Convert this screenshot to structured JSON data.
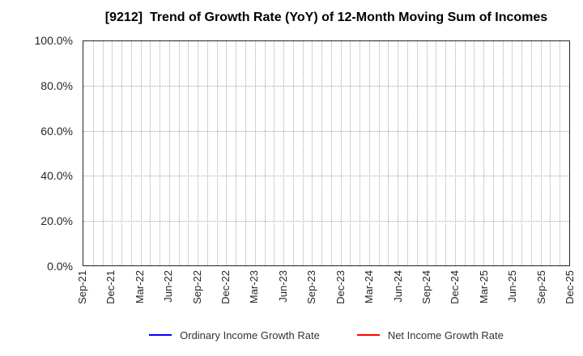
{
  "title": "[9212]  Trend of Growth Rate (YoY) of 12-Month Moving Sum of Incomes",
  "chart_data": {
    "type": "line",
    "title": "[9212]  Trend of Growth Rate (YoY) of 12-Month Moving Sum of Incomes",
    "x_tick_labels": [
      "Sep-21",
      "Dec-21",
      "Mar-22",
      "Jun-22",
      "Sep-22",
      "Dec-22",
      "Mar-23",
      "Jun-23",
      "Sep-23",
      "Dec-23",
      "Mar-24",
      "Jun-24",
      "Sep-24",
      "Dec-24",
      "Mar-25",
      "Jun-25",
      "Sep-25",
      "Dec-25"
    ],
    "x_months_total": 51,
    "x_label_every_months": 3,
    "yticks": [
      0,
      20,
      40,
      60,
      80,
      100
    ],
    "y_tick_labels": [
      "0.0%",
      "20.0%",
      "40.0%",
      "60.0%",
      "80.0%",
      "100.0%"
    ],
    "ylim": [
      0,
      100
    ],
    "grid": "dotted",
    "legend_position": "bottom-center",
    "series": [
      {
        "name": "Ordinary Income Growth Rate",
        "color": "#0000ff",
        "values": []
      },
      {
        "name": "Net Income Growth Rate",
        "color": "#ff0000",
        "values": []
      }
    ]
  },
  "colors": {
    "background": "#ffffff",
    "spine": "#262626",
    "grid": "#a8a8a8",
    "tick_text": "#262626",
    "legend_text": "#333333",
    "title_text": "#000000"
  }
}
